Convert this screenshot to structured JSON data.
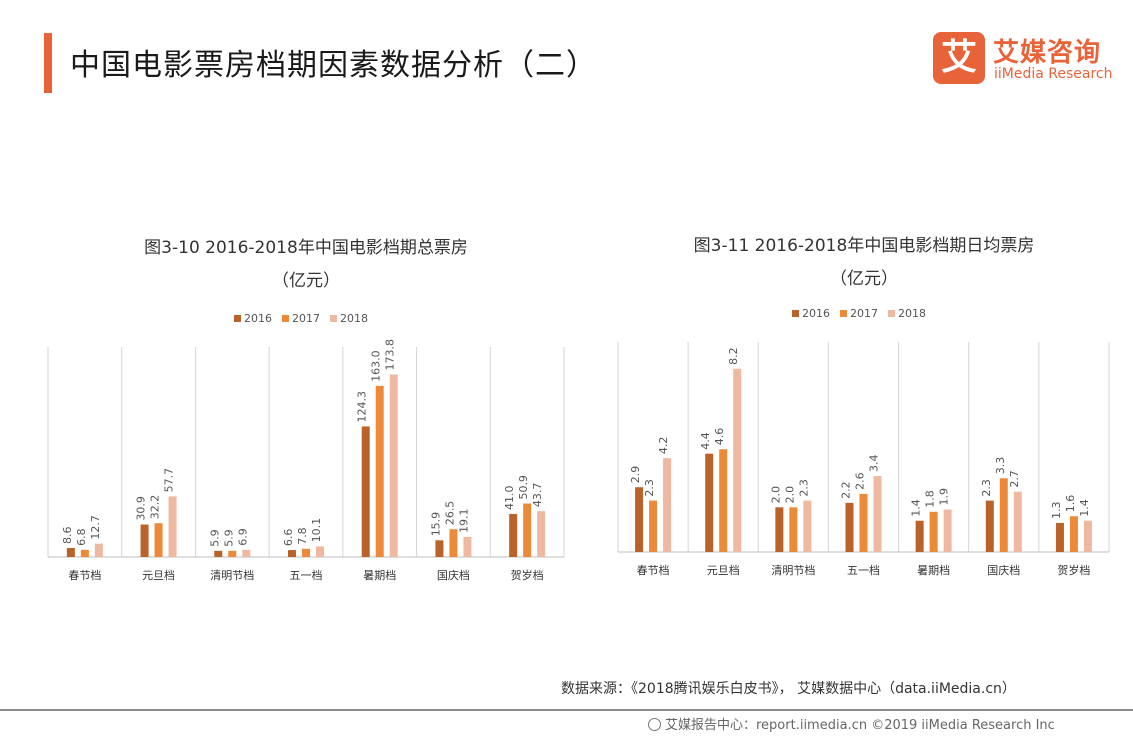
{
  "page_title": "中国电影票房档期因素数据分析（二）",
  "logo": {
    "mark": "艾",
    "cn": "艾媒咨询",
    "en": "iiMedia Research"
  },
  "colors": {
    "accent": "#e8623a",
    "series": [
      "#b9622a",
      "#ed8a3a",
      "#efb9a1"
    ],
    "grid": "#d6d6d6",
    "axis": "#bfbfbf"
  },
  "source_text": "数据来源：《2018腾讯娱乐白皮书》， 艾媒数据中心（data.iiMedia.cn）",
  "footer_text": "艾媒报告中心：report.iimedia.cn  ©2019  iiMedia Research  Inc",
  "chart_data": [
    {
      "type": "bar",
      "title": "图3-10 2016-2018年中国电影档期总票房",
      "unit": "（亿元）",
      "categories": [
        "春节档",
        "元旦档",
        "清明节档",
        "五一档",
        "暑期档",
        "国庆档",
        "贺岁档"
      ],
      "series": [
        {
          "name": "2016",
          "values": [
            8.6,
            30.9,
            5.9,
            6.6,
            124.3,
            15.9,
            41.0
          ]
        },
        {
          "name": "2017",
          "values": [
            6.8,
            32.2,
            5.9,
            7.8,
            163.0,
            26.5,
            50.9
          ]
        },
        {
          "name": "2018",
          "values": [
            12.7,
            57.7,
            6.9,
            10.1,
            173.8,
            19.1,
            43.7
          ]
        }
      ],
      "ylim": [
        0,
        200
      ],
      "legend": "top-center",
      "grid": "vertical category dividers"
    },
    {
      "type": "bar",
      "title": "图3-11 2016-2018年中国电影档期日均票房",
      "unit": "（亿元）",
      "categories": [
        "春节档",
        "元旦档",
        "清明节档",
        "五一档",
        "暑期档",
        "国庆档",
        "贺岁档"
      ],
      "series": [
        {
          "name": "2016",
          "values": [
            2.9,
            4.4,
            2.0,
            2.2,
            1.4,
            2.3,
            1.3
          ]
        },
        {
          "name": "2017",
          "values": [
            2.3,
            4.6,
            2.0,
            2.6,
            1.8,
            3.3,
            1.6
          ]
        },
        {
          "name": "2018",
          "values": [
            4.2,
            8.2,
            2.3,
            3.4,
            1.9,
            2.7,
            1.4
          ]
        }
      ],
      "ylim": [
        0,
        9.4
      ],
      "legend": "top-center",
      "grid": "vertical category dividers"
    }
  ]
}
